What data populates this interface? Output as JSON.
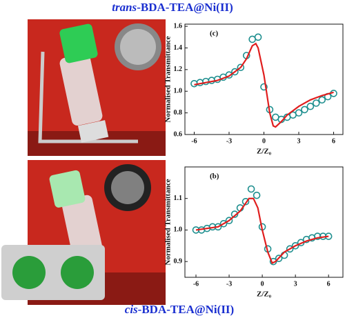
{
  "captions": {
    "top": {
      "prefix": "trans",
      "text": "-BDA-TEA@Ni(II)"
    },
    "bottom": {
      "prefix": "cis",
      "text": "-BDA-TEA@Ni(II)"
    }
  },
  "chart_data": [
    {
      "type": "scatter",
      "panel_label": "(c)",
      "x_label": "Z/Z₀",
      "y_label": "Normalised Transmittance",
      "xlim": [
        -6.8,
        6.8
      ],
      "xticks": [
        -6,
        -3,
        0,
        3,
        6
      ],
      "ylim": [
        0.6,
        1.62
      ],
      "yticks": [
        0.6,
        0.8,
        {
          "value": 1,
          "label": "1.0"
        },
        1.2,
        1.4,
        1.6
      ],
      "series": [
        {
          "type": "scatter",
          "color": "#1f8f8f",
          "x": [
            -6,
            -5.5,
            -5,
            -4.5,
            -4,
            -3.5,
            -3,
            -2.5,
            -2,
            -1.5,
            -1,
            -0.5,
            0,
            0.5,
            1,
            1.5,
            2,
            2.5,
            3,
            3.5,
            4,
            4.5,
            5,
            5.5,
            6
          ],
          "values": [
            1.07,
            1.08,
            1.09,
            1.1,
            1.11,
            1.13,
            1.15,
            1.18,
            1.22,
            1.33,
            1.48,
            1.5,
            1.04,
            0.83,
            0.76,
            0.74,
            0.76,
            0.78,
            0.8,
            0.83,
            0.86,
            0.89,
            0.92,
            0.95,
            0.98
          ]
        },
        {
          "type": "line",
          "color": "#e01e1e",
          "x": [
            -6,
            -5,
            -4,
            -3,
            -2,
            -1.5,
            -1,
            -0.7,
            -0.5,
            0,
            0.5,
            0.8,
            1,
            1.5,
            2,
            3,
            4,
            5,
            6
          ],
          "values": [
            1.06,
            1.08,
            1.1,
            1.14,
            1.22,
            1.3,
            1.42,
            1.44,
            1.4,
            1.15,
            0.8,
            0.68,
            0.67,
            0.72,
            0.78,
            0.86,
            0.92,
            0.96,
            0.99
          ]
        }
      ]
    },
    {
      "type": "scatter",
      "panel_label": "(b)",
      "x_label": "Z/Z₀",
      "y_label": "Normalised Transmittance",
      "xlim": [
        -7,
        7.3
      ],
      "xticks": [
        -6,
        -3,
        0,
        3,
        6
      ],
      "ylim": [
        0.85,
        1.2
      ],
      "yticks": [
        0.9,
        {
          "value": 1,
          "label": "1.0"
        },
        1.1
      ],
      "series": [
        {
          "type": "scatter",
          "color": "#1f8f8f",
          "x": [
            -6,
            -5.5,
            -5,
            -4.5,
            -4,
            -3.5,
            -3,
            -2.5,
            -2,
            -1.5,
            -1,
            -0.5,
            0,
            0.5,
            1,
            1.5,
            2,
            2.5,
            3,
            3.5,
            4,
            4.5,
            5,
            5.5,
            6
          ],
          "values": [
            1.0,
            1.0,
            1.005,
            1.01,
            1.01,
            1.02,
            1.03,
            1.05,
            1.07,
            1.09,
            1.13,
            1.11,
            1.01,
            0.94,
            0.9,
            0.91,
            0.92,
            0.94,
            0.95,
            0.96,
            0.97,
            0.975,
            0.98,
            0.98,
            0.98
          ]
        },
        {
          "type": "line",
          "color": "#e01e1e",
          "x": [
            -6,
            -4,
            -3,
            -2,
            -1.2,
            -0.8,
            -0.4,
            0,
            0.5,
            0.9,
            1.2,
            2,
            3,
            4,
            5,
            6
          ],
          "values": [
            1.0,
            1.01,
            1.03,
            1.06,
            1.1,
            1.1,
            1.07,
            1.0,
            0.93,
            0.895,
            0.9,
            0.93,
            0.95,
            0.965,
            0.975,
            0.98
          ]
        }
      ]
    }
  ]
}
